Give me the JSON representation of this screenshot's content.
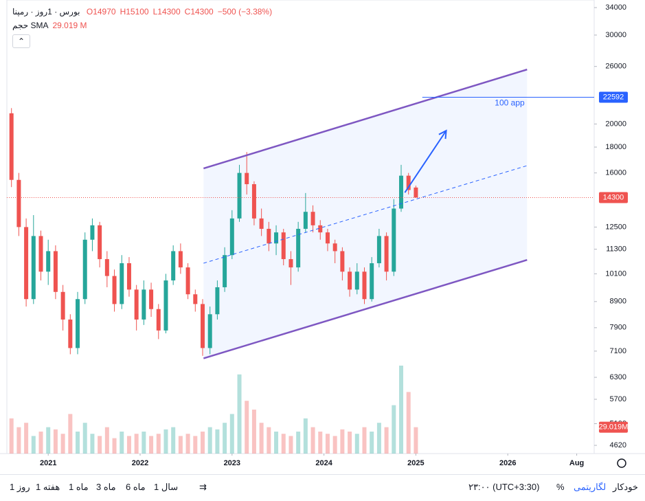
{
  "header": {
    "symbol": "بورس · 1روز · رمپنا",
    "ohlc": [
      "O14970",
      "H15100",
      "L14300",
      "C14300"
    ],
    "change": "−500 (−3.38%)",
    "indicator": "حجم SMA",
    "indicator_value": "29.019 M"
  },
  "chart_data": {
    "type": "candlestick",
    "log": true,
    "up_color": "#26a69a",
    "down_color": "#ef5350",
    "xlim": [
      2020.55,
      2026.94
    ],
    "ylim": [
      4450,
      35200
    ],
    "xticks": [
      {
        "value": 2021,
        "label": "2021"
      },
      {
        "value": 2022,
        "label": "2022"
      },
      {
        "value": 2023,
        "label": "2023"
      },
      {
        "value": 2024,
        "label": "2024"
      },
      {
        "value": 2025,
        "label": "2025"
      },
      {
        "value": 2026,
        "label": "2026"
      },
      {
        "value": 2026.75,
        "label": "Aug"
      }
    ],
    "yticks": [
      34000,
      30000,
      26000,
      20000,
      18000,
      16000,
      12500,
      11300,
      10100,
      8900,
      7900,
      7100,
      6300,
      5700,
      5100,
      4620
    ],
    "x": [
      2020.6,
      2020.68,
      2020.76,
      2020.84,
      2020.92,
      2021.0,
      2021.08,
      2021.16,
      2021.24,
      2021.32,
      2021.4,
      2021.48,
      2021.56,
      2021.64,
      2021.72,
      2021.8,
      2021.88,
      2021.96,
      2022.04,
      2022.12,
      2022.2,
      2022.28,
      2022.36,
      2022.44,
      2022.52,
      2022.6,
      2022.68,
      2022.76,
      2022.84,
      2022.92,
      2023.0,
      2023.08,
      2023.16,
      2023.24,
      2023.32,
      2023.4,
      2023.48,
      2023.56,
      2023.64,
      2023.72,
      2023.8,
      2023.88,
      2023.96,
      2024.04,
      2024.12,
      2024.2,
      2024.28,
      2024.36,
      2024.44,
      2024.52,
      2024.6,
      2024.68,
      2024.76,
      2024.84,
      2024.92,
      2025.0
    ],
    "open": [
      21000,
      15500,
      12500,
      9000,
      12000,
      10200,
      11200,
      9300,
      8200,
      7200,
      9000,
      11800,
      12600,
      10800,
      10000,
      8800,
      10600,
      9400,
      8200,
      9400,
      8600,
      7800,
      9800,
      11200,
      10400,
      9200,
      8800,
      7200,
      8400,
      9500,
      11000,
      13000,
      16000,
      15200,
      13000,
      12400,
      11600,
      12200,
      10800,
      10400,
      12400,
      13400,
      12600,
      12200,
      11600,
      11200,
      10200,
      9400,
      10200,
      9000,
      10600,
      12000,
      10200,
      13600,
      15800,
      14970
    ],
    "high": [
      21500,
      16000,
      13000,
      13200,
      12300,
      11800,
      11500,
      9600,
      8400,
      9300,
      12200,
      13000,
      12800,
      11200,
      10300,
      11000,
      10900,
      9600,
      9800,
      9700,
      8800,
      10100,
      11500,
      11600,
      10600,
      9400,
      9000,
      8700,
      9800,
      11400,
      13500,
      16600,
      17600,
      15400,
      13600,
      12800,
      12600,
      12400,
      11200,
      12800,
      14600,
      13800,
      12900,
      12400,
      11800,
      11400,
      10400,
      10600,
      10400,
      10900,
      12400,
      12200,
      14200,
      16600,
      16000,
      15100
    ],
    "low": [
      15000,
      12000,
      8700,
      8800,
      9800,
      9600,
      9000,
      7800,
      7000,
      7000,
      8800,
      11200,
      10400,
      9500,
      8500,
      8600,
      9100,
      7800,
      8000,
      8300,
      7500,
      7700,
      9600,
      10100,
      9000,
      8500,
      6950,
      7000,
      8200,
      9300,
      10800,
      12800,
      14500,
      12600,
      12000,
      11200,
      11000,
      10500,
      9600,
      10200,
      12200,
      12200,
      11800,
      11200,
      10600,
      9800,
      9100,
      9200,
      8800,
      8900,
      10400,
      9800,
      10000,
      13400,
      14500,
      14300
    ],
    "close": [
      15500,
      12500,
      9000,
      12000,
      10200,
      11200,
      9300,
      8200,
      7200,
      9000,
      11800,
      12600,
      10800,
      10000,
      8800,
      10600,
      9400,
      8200,
      9400,
      8600,
      7800,
      9800,
      11200,
      10400,
      9200,
      8800,
      7200,
      8400,
      9500,
      11000,
      13000,
      16000,
      15200,
      13000,
      12400,
      11600,
      12200,
      10800,
      10400,
      12400,
      13400,
      12600,
      12200,
      11600,
      11200,
      10200,
      9400,
      10200,
      9000,
      10600,
      12000,
      10200,
      13600,
      15800,
      14800,
      14300
    ],
    "volume": {
      "values": [
        80,
        60,
        70,
        40,
        50,
        60,
        55,
        45,
        90,
        50,
        70,
        45,
        40,
        60,
        35,
        50,
        40,
        45,
        50,
        40,
        45,
        55,
        60,
        40,
        45,
        40,
        50,
        60,
        55,
        70,
        90,
        180,
        120,
        100,
        70,
        60,
        50,
        45,
        40,
        50,
        80,
        60,
        50,
        45,
        40,
        55,
        50,
        45,
        60,
        50,
        70,
        60,
        110,
        200,
        140,
        60
      ],
      "ylim": [
        0,
        250
      ],
      "last_label": "29.019M"
    },
    "last_price": 14300,
    "target": {
      "value": 22592,
      "x": 2025.07,
      "label": "100 app"
    },
    "channel": {
      "x": [
        2022.69,
        2026.21
      ],
      "upper": [
        16330,
        25640
      ],
      "middle": [
        10600,
        16540
      ],
      "lower": [
        6870,
        10760
      ]
    },
    "arrow": {
      "x": [
        2024.88,
        2025.33
      ],
      "y": [
        14630,
        19400
      ]
    }
  },
  "toolbar": {
    "ranges": [
      "روز 1",
      "هفته 1",
      "ماه 1",
      "ماه 3",
      "ماه 6",
      "سال 1"
    ],
    "timezone": "۲۳:۰۰ (UTC+3:30)",
    "percent": "%",
    "log": "لگاریتمی",
    "auto": "خودکار"
  }
}
